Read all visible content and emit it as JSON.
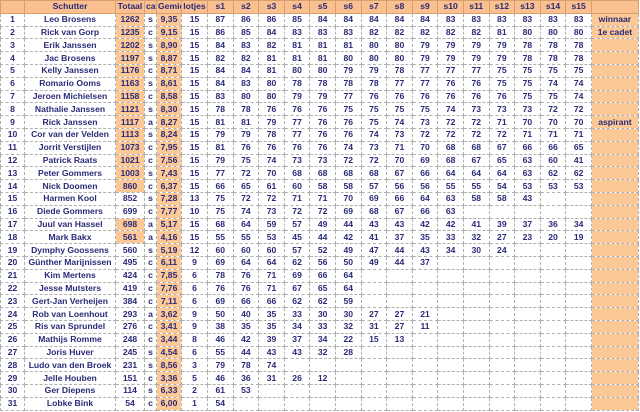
{
  "headers": [
    "",
    "Schutter",
    "Totaal",
    "cat",
    "Gemid",
    "lotjes",
    "s1",
    "s2",
    "s3",
    "s4",
    "s5",
    "s6",
    "s7",
    "s8",
    "s9",
    "s10",
    "s11",
    "s12",
    "s13",
    "s14",
    "s15",
    ""
  ],
  "highlight_color": "#fbc896",
  "header_color": "#fac08f",
  "text_color": "#2a2a78",
  "rows": [
    {
      "nr": "1",
      "name": "Leo Brosens",
      "totaal": "1262",
      "hl": true,
      "cat": "s",
      "gemid": "9,35",
      "lotjes": "15",
      "scores": [
        "87",
        "86",
        "86",
        "85",
        "84",
        "84",
        "84",
        "84",
        "84",
        "83",
        "83",
        "83",
        "83",
        "83",
        "83"
      ],
      "note": "winnaar"
    },
    {
      "nr": "2",
      "name": "Rick van Gorp",
      "totaal": "1235",
      "hl": true,
      "cat": "c",
      "gemid": "9,15",
      "lotjes": "15",
      "scores": [
        "86",
        "85",
        "84",
        "83",
        "83",
        "83",
        "82",
        "82",
        "82",
        "82",
        "82",
        "81",
        "80",
        "80",
        "80"
      ],
      "note": "1e cadet"
    },
    {
      "nr": "3",
      "name": "Erik Janssen",
      "totaal": "1202",
      "hl": true,
      "cat": "s",
      "gemid": "8,90",
      "lotjes": "15",
      "scores": [
        "84",
        "83",
        "82",
        "81",
        "81",
        "81",
        "80",
        "80",
        "79",
        "79",
        "79",
        "79",
        "78",
        "78",
        "78"
      ],
      "note": ""
    },
    {
      "nr": "4",
      "name": "Jac Brosens",
      "totaal": "1197",
      "hl": true,
      "cat": "s",
      "gemid": "8,87",
      "lotjes": "15",
      "scores": [
        "82",
        "82",
        "81",
        "81",
        "81",
        "80",
        "80",
        "80",
        "79",
        "79",
        "79",
        "79",
        "78",
        "78",
        "78"
      ],
      "note": ""
    },
    {
      "nr": "5",
      "name": "Kelly Janssen",
      "totaal": "1176",
      "hl": true,
      "cat": "c",
      "gemid": "8,71",
      "lotjes": "15",
      "scores": [
        "84",
        "84",
        "81",
        "80",
        "80",
        "79",
        "79",
        "78",
        "77",
        "77",
        "77",
        "75",
        "75",
        "75",
        "75"
      ],
      "note": ""
    },
    {
      "nr": "6",
      "name": "Romario Ooms",
      "totaal": "1163",
      "hl": true,
      "cat": "s",
      "gemid": "8,61",
      "lotjes": "15",
      "scores": [
        "84",
        "83",
        "80",
        "78",
        "78",
        "78",
        "78",
        "77",
        "77",
        "76",
        "76",
        "75",
        "75",
        "74",
        "74"
      ],
      "note": ""
    },
    {
      "nr": "7",
      "name": "Jeroen Michielsen",
      "totaal": "1158",
      "hl": true,
      "cat": "c",
      "gemid": "8,58",
      "lotjes": "15",
      "scores": [
        "83",
        "80",
        "80",
        "79",
        "79",
        "77",
        "76",
        "76",
        "76",
        "76",
        "76",
        "76",
        "75",
        "75",
        "74"
      ],
      "note": ""
    },
    {
      "nr": "8",
      "name": "Nathalie Janssen",
      "totaal": "1121",
      "hl": true,
      "cat": "s",
      "gemid": "8,30",
      "lotjes": "15",
      "scores": [
        "78",
        "78",
        "76",
        "76",
        "76",
        "75",
        "75",
        "75",
        "75",
        "74",
        "73",
        "73",
        "73",
        "72",
        "72"
      ],
      "note": ""
    },
    {
      "nr": "9",
      "name": "Rick Janssen",
      "totaal": "1117",
      "hl": true,
      "cat": "a",
      "gemid": "8,27",
      "lotjes": "15",
      "scores": [
        "81",
        "81",
        "79",
        "77",
        "76",
        "76",
        "75",
        "74",
        "73",
        "72",
        "72",
        "71",
        "70",
        "70",
        "70"
      ],
      "note": "aspirant"
    },
    {
      "nr": "10",
      "name": "Cor van der Velden",
      "totaal": "1113",
      "hl": true,
      "cat": "s",
      "gemid": "8,24",
      "lotjes": "15",
      "scores": [
        "79",
        "79",
        "78",
        "77",
        "76",
        "76",
        "74",
        "73",
        "72",
        "72",
        "72",
        "72",
        "71",
        "71",
        "71"
      ],
      "note": ""
    },
    {
      "nr": "11",
      "name": "Jorrit Verstijlen",
      "totaal": "1073",
      "hl": true,
      "cat": "c",
      "gemid": "7,95",
      "lotjes": "15",
      "scores": [
        "81",
        "76",
        "76",
        "76",
        "76",
        "74",
        "73",
        "71",
        "70",
        "68",
        "68",
        "67",
        "66",
        "66",
        "65"
      ],
      "note": ""
    },
    {
      "nr": "12",
      "name": "Patrick Raats",
      "totaal": "1021",
      "hl": true,
      "cat": "c",
      "gemid": "7,56",
      "lotjes": "15",
      "scores": [
        "79",
        "75",
        "74",
        "73",
        "73",
        "72",
        "72",
        "70",
        "69",
        "68",
        "67",
        "65",
        "63",
        "60",
        "41"
      ],
      "note": ""
    },
    {
      "nr": "13",
      "name": "Peter Gommers",
      "totaal": "1003",
      "hl": true,
      "cat": "s",
      "gemid": "7,43",
      "lotjes": "15",
      "scores": [
        "77",
        "72",
        "70",
        "68",
        "68",
        "68",
        "68",
        "67",
        "66",
        "64",
        "64",
        "64",
        "63",
        "62",
        "62"
      ],
      "note": ""
    },
    {
      "nr": "14",
      "name": "Nick Doomen",
      "totaal": "860",
      "hl": true,
      "cat": "c",
      "gemid": "6,37",
      "lotjes": "15",
      "scores": [
        "66",
        "65",
        "61",
        "60",
        "58",
        "58",
        "57",
        "56",
        "56",
        "55",
        "55",
        "54",
        "53",
        "53",
        "53"
      ],
      "note": ""
    },
    {
      "nr": "15",
      "name": "Harmen Kool",
      "totaal": "852",
      "hl": false,
      "cat": "s",
      "gemid": "7,28",
      "lotjes": "13",
      "scores": [
        "75",
        "72",
        "72",
        "71",
        "71",
        "70",
        "69",
        "66",
        "64",
        "63",
        "58",
        "58",
        "43",
        "",
        ""
      ],
      "note": ""
    },
    {
      "nr": "16",
      "name": "Diede Gommers",
      "totaal": "699",
      "hl": false,
      "cat": "c",
      "gemid": "7,77",
      "lotjes": "10",
      "scores": [
        "75",
        "74",
        "73",
        "72",
        "72",
        "69",
        "68",
        "67",
        "66",
        "63",
        "",
        "",
        "",
        "",
        ""
      ],
      "note": ""
    },
    {
      "nr": "17",
      "name": "Juul van Hassel",
      "totaal": "698",
      "hl": true,
      "cat": "a",
      "gemid": "5,17",
      "lotjes": "15",
      "scores": [
        "68",
        "64",
        "59",
        "57",
        "49",
        "44",
        "43",
        "43",
        "42",
        "42",
        "41",
        "39",
        "37",
        "36",
        "34"
      ],
      "note": ""
    },
    {
      "nr": "18",
      "name": "Mark Bakx",
      "totaal": "561",
      "hl": true,
      "cat": "a",
      "gemid": "4,16",
      "lotjes": "15",
      "scores": [
        "55",
        "55",
        "53",
        "45",
        "44",
        "42",
        "41",
        "37",
        "35",
        "33",
        "32",
        "27",
        "23",
        "20",
        "19"
      ],
      "note": ""
    },
    {
      "nr": "19",
      "name": "Dymphy Goossens",
      "totaal": "560",
      "hl": false,
      "cat": "s",
      "gemid": "5,19",
      "lotjes": "12",
      "scores": [
        "60",
        "60",
        "60",
        "57",
        "52",
        "49",
        "47",
        "44",
        "43",
        "34",
        "30",
        "24",
        "",
        "",
        ""
      ],
      "note": ""
    },
    {
      "nr": "20",
      "name": "Günther Marijnissen",
      "totaal": "495",
      "hl": false,
      "cat": "c",
      "gemid": "6,11",
      "lotjes": "9",
      "scores": [
        "69",
        "64",
        "64",
        "62",
        "56",
        "50",
        "49",
        "44",
        "37",
        "",
        "",
        "",
        "",
        "",
        ""
      ],
      "note": ""
    },
    {
      "nr": "21",
      "name": "Kim Mertens",
      "totaal": "424",
      "hl": false,
      "cat": "c",
      "gemid": "7,85",
      "lotjes": "6",
      "scores": [
        "78",
        "76",
        "71",
        "69",
        "66",
        "64",
        "",
        "",
        "",
        "",
        "",
        "",
        "",
        "",
        ""
      ],
      "note": ""
    },
    {
      "nr": "22",
      "name": "Jesse Mutsters",
      "totaal": "419",
      "hl": false,
      "cat": "c",
      "gemid": "7,76",
      "lotjes": "6",
      "scores": [
        "76",
        "76",
        "71",
        "67",
        "65",
        "64",
        "",
        "",
        "",
        "",
        "",
        "",
        "",
        "",
        ""
      ],
      "note": ""
    },
    {
      "nr": "23",
      "name": "Gert-Jan Verheijen",
      "totaal": "384",
      "hl": false,
      "cat": "c",
      "gemid": "7,11",
      "lotjes": "6",
      "scores": [
        "69",
        "66",
        "66",
        "62",
        "62",
        "59",
        "",
        "",
        "",
        "",
        "",
        "",
        "",
        "",
        ""
      ],
      "note": ""
    },
    {
      "nr": "24",
      "name": "Rob van Loenhout",
      "totaal": "293",
      "hl": false,
      "cat": "a",
      "gemid": "3,62",
      "lotjes": "9",
      "scores": [
        "50",
        "40",
        "35",
        "33",
        "30",
        "30",
        "27",
        "27",
        "21",
        "",
        "",
        "",
        "",
        "",
        ""
      ],
      "note": ""
    },
    {
      "nr": "25",
      "name": "Ris van Sprundel",
      "totaal": "276",
      "hl": false,
      "cat": "c",
      "gemid": "3,41",
      "lotjes": "9",
      "scores": [
        "38",
        "35",
        "35",
        "34",
        "33",
        "32",
        "31",
        "27",
        "11",
        "",
        "",
        "",
        "",
        "",
        ""
      ],
      "note": ""
    },
    {
      "nr": "26",
      "name": "Mathijs Romme",
      "totaal": "248",
      "hl": false,
      "cat": "c",
      "gemid": "3,44",
      "lotjes": "8",
      "scores": [
        "46",
        "42",
        "39",
        "37",
        "34",
        "22",
        "15",
        "13",
        "",
        "",
        "",
        "",
        "",
        "",
        ""
      ],
      "note": ""
    },
    {
      "nr": "27",
      "name": "Joris Huver",
      "totaal": "245",
      "hl": false,
      "cat": "s",
      "gemid": "4,54",
      "lotjes": "6",
      "scores": [
        "55",
        "44",
        "43",
        "43",
        "32",
        "28",
        "",
        "",
        "",
        "",
        "",
        "",
        "",
        "",
        ""
      ],
      "note": ""
    },
    {
      "nr": "28",
      "name": "Ludo van den Broek",
      "totaal": "231",
      "hl": false,
      "cat": "s",
      "gemid": "8,56",
      "lotjes": "3",
      "scores": [
        "79",
        "78",
        "74",
        "",
        "",
        "",
        "",
        "",
        "",
        "",
        "",
        "",
        "",
        "",
        ""
      ],
      "note": ""
    },
    {
      "nr": "29",
      "name": "Jelle Houben",
      "totaal": "151",
      "hl": false,
      "cat": "c",
      "gemid": "3,36",
      "lotjes": "5",
      "scores": [
        "46",
        "36",
        "31",
        "26",
        "12",
        "",
        "",
        "",
        "",
        "",
        "",
        "",
        "",
        "",
        ""
      ],
      "note": ""
    },
    {
      "nr": "30",
      "name": "Ger Diepens",
      "totaal": "114",
      "hl": false,
      "cat": "s",
      "gemid": "6,33",
      "lotjes": "2",
      "scores": [
        "61",
        "53",
        "",
        "",
        "",
        "",
        "",
        "",
        "",
        "",
        "",
        "",
        "",
        "",
        ""
      ],
      "note": ""
    },
    {
      "nr": "31",
      "name": "Lobke Bink",
      "totaal": "54",
      "hl": false,
      "cat": "c",
      "gemid": "6,00",
      "lotjes": "1",
      "scores": [
        "54",
        "",
        "",
        "",
        "",
        "",
        "",
        "",
        "",
        "",
        "",
        "",
        "",
        "",
        ""
      ],
      "note": ""
    }
  ]
}
